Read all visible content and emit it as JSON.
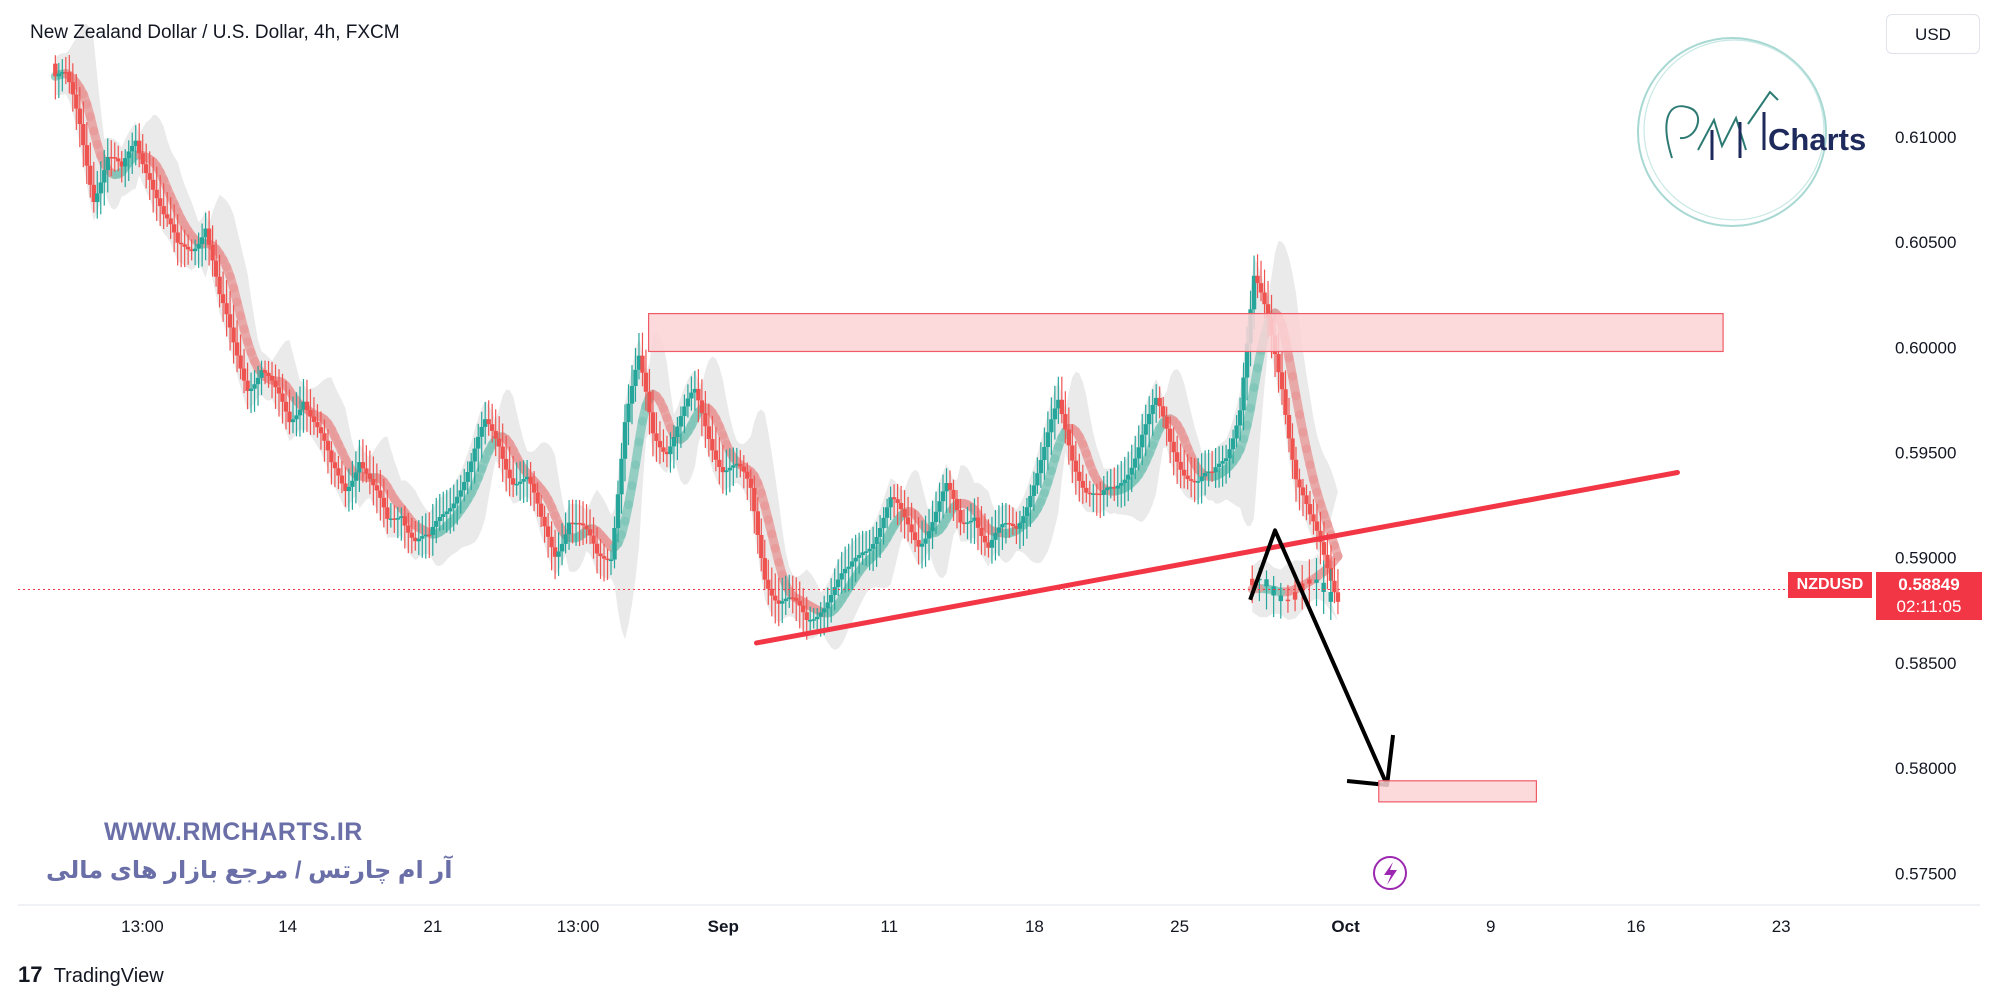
{
  "header": {
    "title": "New Zealand Dollar / U.S. Dollar, 4h, FXCM"
  },
  "toolbar": {
    "currency": "USD"
  },
  "watermark": {
    "url": "WWW.RMCHARTS.IR",
    "subtitle": "آر ام چارتس / مرجع بازار های مالی",
    "logo_text": "Charts"
  },
  "footer": {
    "brand": "TradingView",
    "logo": "17"
  },
  "price_label": {
    "symbol": "NZDUSD",
    "price": "0.58849",
    "countdown": "02:11:05"
  },
  "colors": {
    "up": "#26a69a",
    "down": "#ef5350",
    "trendline": "#f23645",
    "zone_fill": "#fbd3d6",
    "zone_stroke": "#f05a66",
    "arrow": "#000000"
  },
  "chart_data": {
    "type": "candlestick",
    "symbol": "NZDUSD",
    "timeframe": "4h",
    "y_range": [
      0.5735,
      0.6165
    ],
    "y_ticks": [
      "0.61000",
      "0.60500",
      "0.60000",
      "0.59500",
      "0.59000",
      "0.58500",
      "0.58000",
      "0.57500"
    ],
    "x_ticks": [
      "13:00",
      "14",
      "21",
      "13:00",
      "Sep",
      "11",
      "18",
      "25",
      "Oct",
      "9",
      "16",
      "23"
    ],
    "x_tick_positions": [
      0.5,
      4,
      7.5,
      11,
      14.5,
      18.5,
      22,
      25.5,
      29.5,
      33,
      36.5,
      40
    ],
    "x_range": [
      -2.5,
      41.9
    ],
    "current_price": 0.58849,
    "close_series": [
      0.6125,
      0.6105,
      0.6075,
      0.609,
      0.608,
      0.61,
      0.6085,
      0.606,
      0.6045,
      0.605,
      0.606,
      0.602,
      0.6,
      0.5985,
      0.599,
      0.5975,
      0.5965,
      0.598,
      0.596,
      0.594,
      0.5935,
      0.595,
      0.593,
      0.5915,
      0.5925,
      0.591,
      0.5905,
      0.592,
      0.5935,
      0.5945,
      0.596,
      0.5955,
      0.594,
      0.5935,
      0.5915,
      0.5905,
      0.592,
      0.591,
      0.59,
      0.5905,
      0.5965,
      0.599,
      0.596,
      0.5955,
      0.5965,
      0.5975,
      0.596,
      0.5945,
      0.594,
      0.593,
      0.5895,
      0.588,
      0.5875,
      0.587,
      0.588,
      0.5885,
      0.589,
      0.5905,
      0.5915,
      0.5925,
      0.5915,
      0.591,
      0.592,
      0.593,
      0.5915,
      0.5925,
      0.5905,
      0.591,
      0.5915,
      0.5935,
      0.595,
      0.597,
      0.595,
      0.5935,
      0.5925,
      0.593,
      0.5945,
      0.596,
      0.597,
      0.5955,
      0.5945,
      0.5935,
      0.5935,
      0.595,
      0.5975,
      0.603,
      0.601,
      0.5985,
      0.594,
      0.5915,
      0.59,
      0.5885
    ],
    "annotations": [
      {
        "type": "resistance-zone",
        "x": [
          12.7,
          38.6
        ],
        "y": [
          0.5998,
          0.6016
        ]
      },
      {
        "type": "trendline",
        "points": [
          [
            15.3,
            0.58595
          ],
          [
            37.5,
            0.59405
          ]
        ]
      },
      {
        "type": "arrow",
        "points": [
          [
            27.2,
            0.588
          ],
          [
            27.8,
            0.5913
          ],
          [
            30.5,
            0.5792
          ]
        ]
      },
      {
        "type": "target-zone",
        "x": [
          30.3,
          34.1
        ],
        "y": [
          0.5784,
          0.5794
        ]
      }
    ]
  }
}
